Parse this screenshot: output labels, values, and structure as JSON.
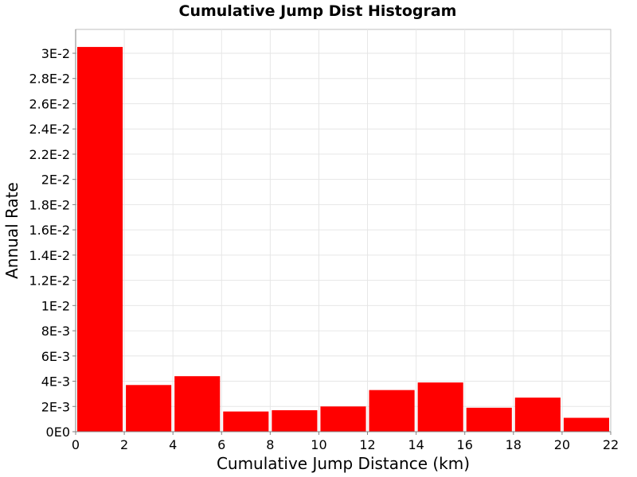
{
  "chart_data": {
    "type": "bar",
    "title": "Cumulative Jump Dist Histogram",
    "xlabel": "Cumulative Jump Distance (km)",
    "ylabel": "Annual Rate",
    "xlim": [
      0,
      22
    ],
    "ylim": [
      0,
      0.0315
    ],
    "x_ticks": [
      0,
      2,
      4,
      6,
      8,
      10,
      12,
      14,
      16,
      18,
      20,
      22
    ],
    "x_tick_labels": [
      "0",
      "2",
      "4",
      "6",
      "8",
      "10",
      "12",
      "14",
      "16",
      "18",
      "20",
      "22"
    ],
    "y_ticks": [
      0,
      0.002,
      0.004,
      0.006,
      0.008,
      0.01,
      0.012,
      0.014,
      0.016,
      0.018,
      0.02,
      0.022,
      0.024,
      0.026,
      0.028,
      0.03
    ],
    "y_tick_labels": [
      "0E0",
      "2E-3",
      "4E-3",
      "6E-3",
      "8E-3",
      "1E-2",
      "1.2E-2",
      "1.4E-2",
      "1.6E-2",
      "1.8E-2",
      "2E-2",
      "2.2E-2",
      "2.4E-2",
      "2.6E-2",
      "2.8E-2",
      "3E-2"
    ],
    "grid": true,
    "bar_color": "#ff0000",
    "bins": [
      {
        "x_start": 0,
        "x_end": 2,
        "value": 0.0305
      },
      {
        "x_start": 2,
        "x_end": 4,
        "value": 0.0037
      },
      {
        "x_start": 4,
        "x_end": 6,
        "value": 0.0044
      },
      {
        "x_start": 6,
        "x_end": 8,
        "value": 0.0016
      },
      {
        "x_start": 8,
        "x_end": 10,
        "value": 0.0017
      },
      {
        "x_start": 10,
        "x_end": 12,
        "value": 0.002
      },
      {
        "x_start": 12,
        "x_end": 14,
        "value": 0.0033
      },
      {
        "x_start": 14,
        "x_end": 16,
        "value": 0.0039
      },
      {
        "x_start": 16,
        "x_end": 18,
        "value": 0.0019
      },
      {
        "x_start": 18,
        "x_end": 20,
        "value": 0.0027
      },
      {
        "x_start": 20,
        "x_end": 22,
        "value": 0.0011
      }
    ]
  }
}
